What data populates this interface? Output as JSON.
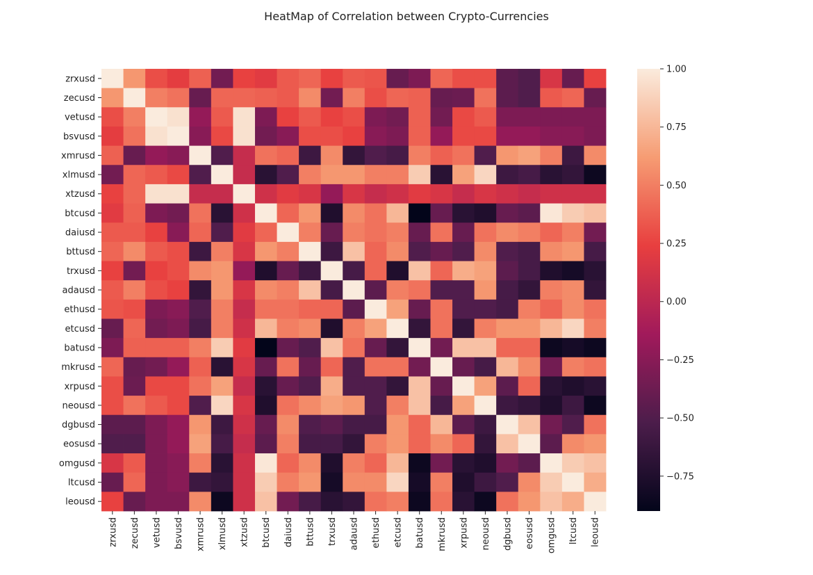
{
  "chart_data": {
    "type": "heatmap",
    "title": "HeatMap of Correlation between Crypto-Currencies",
    "labels": [
      "zrxusd",
      "zecusd",
      "vetusd",
      "bsvusd",
      "xmrusd",
      "xlmusd",
      "xtzusd",
      "btcusd",
      "daiusd",
      "bttusd",
      "trxusd",
      "adausd",
      "ethusd",
      "etcusd",
      "batusd",
      "mkrusd",
      "xrpusd",
      "neousd",
      "dgbusd",
      "eosusd",
      "omgusd",
      "ltcusd",
      "leousd"
    ],
    "values": [
      [
        1.0,
        0.6,
        0.3,
        0.22,
        0.38,
        -0.35,
        0.25,
        0.2,
        0.35,
        0.4,
        0.25,
        0.35,
        0.33,
        -0.4,
        -0.3,
        0.4,
        0.3,
        0.3,
        -0.45,
        -0.5,
        0.15,
        -0.4,
        0.25
      ],
      [
        0.6,
        1.0,
        0.5,
        0.45,
        -0.4,
        0.4,
        0.4,
        0.38,
        0.35,
        0.55,
        -0.35,
        0.5,
        0.3,
        0.4,
        0.38,
        -0.4,
        -0.38,
        0.45,
        -0.45,
        -0.5,
        0.35,
        0.4,
        -0.4
      ],
      [
        0.3,
        0.5,
        1.0,
        0.95,
        -0.2,
        0.35,
        0.95,
        -0.3,
        0.25,
        0.35,
        0.25,
        0.3,
        -0.3,
        -0.35,
        0.38,
        -0.35,
        0.28,
        0.35,
        -0.3,
        -0.3,
        -0.3,
        -0.3,
        -0.3
      ],
      [
        0.22,
        0.45,
        0.95,
        1.0,
        -0.25,
        0.28,
        0.95,
        -0.35,
        -0.25,
        0.3,
        0.3,
        0.25,
        -0.25,
        -0.3,
        0.38,
        -0.2,
        0.28,
        0.28,
        -0.2,
        -0.2,
        -0.25,
        -0.25,
        -0.3
      ],
      [
        0.38,
        -0.4,
        -0.2,
        -0.25,
        1.0,
        -0.5,
        0.05,
        0.45,
        0.4,
        -0.6,
        0.55,
        -0.65,
        -0.5,
        -0.55,
        0.5,
        0.38,
        0.45,
        -0.5,
        0.6,
        0.65,
        0.5,
        -0.6,
        0.55
      ],
      [
        -0.35,
        0.4,
        0.35,
        0.28,
        -0.5,
        1.0,
        0.05,
        -0.7,
        -0.5,
        0.5,
        0.6,
        0.6,
        0.5,
        0.5,
        0.85,
        -0.7,
        0.65,
        0.9,
        -0.6,
        -0.55,
        -0.7,
        -0.65,
        -0.85
      ],
      [
        0.25,
        0.4,
        0.95,
        0.95,
        0.05,
        0.05,
        1.0,
        0.1,
        0.2,
        0.15,
        -0.2,
        0.15,
        0.05,
        0.1,
        0.2,
        0.15,
        0.05,
        0.15,
        0.1,
        0.05,
        0.1,
        0.1,
        0.1
      ],
      [
        0.2,
        0.38,
        -0.3,
        -0.35,
        0.45,
        -0.7,
        0.1,
        1.0,
        0.4,
        0.6,
        -0.75,
        0.55,
        0.45,
        0.75,
        -0.9,
        -0.4,
        -0.7,
        -0.75,
        -0.4,
        -0.45,
        0.98,
        0.85,
        0.8
      ],
      [
        0.35,
        0.35,
        0.25,
        -0.25,
        0.4,
        -0.5,
        0.2,
        0.4,
        1.0,
        0.5,
        -0.4,
        0.5,
        0.45,
        0.5,
        -0.4,
        0.45,
        -0.4,
        0.45,
        0.55,
        0.5,
        0.4,
        0.5,
        -0.35
      ],
      [
        0.4,
        0.55,
        0.35,
        0.3,
        -0.6,
        0.5,
        0.15,
        0.6,
        0.5,
        1.0,
        -0.6,
        0.8,
        0.4,
        0.55,
        -0.5,
        -0.4,
        -0.5,
        0.55,
        -0.5,
        -0.55,
        0.55,
        0.6,
        -0.55
      ],
      [
        0.25,
        -0.35,
        0.25,
        0.3,
        0.55,
        0.6,
        -0.2,
        -0.75,
        -0.4,
        -0.6,
        1.0,
        -0.55,
        0.4,
        -0.75,
        0.8,
        0.4,
        0.7,
        0.65,
        -0.45,
        -0.55,
        -0.75,
        -0.8,
        -0.7
      ],
      [
        0.35,
        0.5,
        0.3,
        0.25,
        -0.65,
        0.6,
        0.15,
        0.55,
        0.5,
        0.8,
        -0.55,
        1.0,
        -0.45,
        0.5,
        0.45,
        -0.5,
        -0.5,
        0.6,
        -0.55,
        -0.65,
        0.5,
        0.55,
        -0.65
      ],
      [
        0.33,
        0.3,
        -0.3,
        -0.25,
        -0.5,
        0.5,
        0.05,
        0.45,
        0.45,
        0.4,
        0.4,
        -0.45,
        1.0,
        0.65,
        -0.4,
        0.45,
        -0.5,
        -0.5,
        -0.55,
        0.5,
        0.4,
        0.55,
        0.45
      ],
      [
        -0.4,
        0.4,
        -0.35,
        -0.3,
        -0.55,
        0.5,
        0.1,
        0.75,
        0.5,
        0.55,
        -0.75,
        0.5,
        0.65,
        1.0,
        -0.65,
        0.45,
        -0.65,
        0.5,
        0.6,
        0.6,
        0.75,
        0.9,
        0.5
      ],
      [
        -0.3,
        0.38,
        0.38,
        0.38,
        0.5,
        0.85,
        0.2,
        -0.9,
        -0.4,
        -0.5,
        0.8,
        0.45,
        -0.4,
        -0.65,
        1.0,
        -0.35,
        0.8,
        0.8,
        0.4,
        0.4,
        -0.85,
        -0.8,
        -0.85
      ],
      [
        0.4,
        -0.4,
        -0.35,
        -0.2,
        0.38,
        -0.7,
        0.15,
        -0.4,
        0.45,
        -0.4,
        0.4,
        -0.5,
        0.45,
        0.45,
        -0.35,
        1.0,
        -0.4,
        -0.55,
        0.75,
        0.55,
        -0.35,
        0.5,
        0.45
      ],
      [
        0.3,
        -0.38,
        0.28,
        0.28,
        0.45,
        0.65,
        0.05,
        -0.7,
        -0.4,
        -0.5,
        0.7,
        -0.5,
        -0.5,
        -0.65,
        0.8,
        -0.4,
        1.0,
        0.65,
        -0.45,
        0.4,
        -0.7,
        -0.75,
        -0.7
      ],
      [
        0.3,
        0.45,
        0.35,
        0.28,
        -0.5,
        0.9,
        0.15,
        -0.75,
        0.45,
        0.55,
        0.65,
        0.6,
        -0.5,
        0.5,
        0.8,
        -0.55,
        0.65,
        1.0,
        -0.6,
        -0.65,
        -0.75,
        -0.6,
        -0.85
      ],
      [
        -0.45,
        -0.45,
        -0.3,
        -0.2,
        0.6,
        -0.6,
        0.1,
        -0.4,
        0.55,
        -0.5,
        -0.45,
        -0.55,
        -0.55,
        0.6,
        0.4,
        0.75,
        -0.45,
        -0.6,
        1.0,
        0.8,
        -0.35,
        -0.5,
        0.45
      ],
      [
        -0.5,
        -0.5,
        -0.3,
        -0.2,
        0.65,
        -0.55,
        0.05,
        -0.45,
        0.5,
        -0.55,
        -0.55,
        -0.65,
        0.5,
        0.6,
        0.4,
        0.55,
        0.4,
        -0.65,
        0.8,
        1.0,
        -0.45,
        0.55,
        0.6
      ],
      [
        0.15,
        0.35,
        -0.3,
        -0.25,
        0.5,
        -0.7,
        0.1,
        0.98,
        0.4,
        0.55,
        -0.75,
        0.5,
        0.4,
        0.75,
        -0.85,
        -0.35,
        -0.7,
        -0.75,
        -0.35,
        -0.45,
        1.0,
        0.85,
        0.8
      ],
      [
        -0.4,
        0.4,
        -0.3,
        -0.25,
        -0.6,
        -0.65,
        0.1,
        0.85,
        0.5,
        0.6,
        -0.8,
        0.55,
        0.55,
        0.9,
        -0.8,
        0.5,
        -0.75,
        -0.6,
        -0.5,
        0.55,
        0.85,
        1.0,
        0.7
      ],
      [
        0.25,
        -0.4,
        -0.3,
        -0.3,
        0.55,
        -0.85,
        0.1,
        0.8,
        -0.35,
        -0.55,
        -0.7,
        -0.65,
        0.45,
        0.5,
        -0.85,
        0.45,
        -0.7,
        -0.85,
        0.45,
        0.6,
        0.8,
        0.7,
        1.0
      ]
    ],
    "colorbar": {
      "range": [
        -0.9,
        1.0
      ],
      "ticks": [
        1.0,
        0.75,
        0.5,
        0.25,
        0.0,
        -0.25,
        -0.5,
        -0.75
      ],
      "tick_labels": [
        "1.00",
        "0.75",
        "0.50",
        "0.25",
        "0.00",
        "−0.25",
        "−0.50",
        "−0.75"
      ],
      "colormap": "rocket",
      "stops": [
        "#03051a",
        "#4c1d4b",
        "#a11a5b",
        "#e83f3f",
        "#f69c73",
        "#faebdd"
      ]
    }
  }
}
